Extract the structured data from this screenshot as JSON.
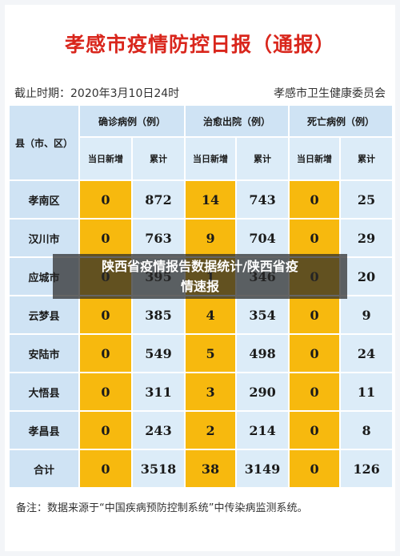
{
  "title": "孝感市疫情防控日报（通报）",
  "cutoff": "截止时期：2020年3月10日24时",
  "issuer": "孝感市卫生健康委员会",
  "headers": {
    "county": "县（市、区）",
    "confirmed": "确诊病例（例）",
    "recovered": "治愈出院（例）",
    "deaths": "死亡病例（例）",
    "new": "当日新增",
    "total": "累计"
  },
  "rows": [
    {
      "county": "孝南区",
      "c_new": "0",
      "c_total": "872",
      "r_new": "14",
      "r_total": "743",
      "d_new": "0",
      "d_total": "25"
    },
    {
      "county": "汉川市",
      "c_new": "0",
      "c_total": "763",
      "r_new": "9",
      "r_total": "704",
      "d_new": "0",
      "d_total": "29"
    },
    {
      "county": "应城市",
      "c_new": "0",
      "c_total": "395",
      "r_new": "1",
      "r_total": "346",
      "d_new": "0",
      "d_total": "20"
    },
    {
      "county": "云梦县",
      "c_new": "0",
      "c_total": "385",
      "r_new": "4",
      "r_total": "354",
      "d_new": "0",
      "d_total": "9"
    },
    {
      "county": "安陆市",
      "c_new": "0",
      "c_total": "549",
      "r_new": "5",
      "r_total": "498",
      "d_new": "0",
      "d_total": "24"
    },
    {
      "county": "大悟县",
      "c_new": "0",
      "c_total": "311",
      "r_new": "3",
      "r_total": "290",
      "d_new": "0",
      "d_total": "11"
    },
    {
      "county": "孝昌县",
      "c_new": "0",
      "c_total": "243",
      "r_new": "2",
      "r_total": "214",
      "d_new": "0",
      "d_total": "8"
    },
    {
      "county": "合计",
      "c_new": "0",
      "c_total": "3518",
      "r_new": "38",
      "r_total": "3149",
      "d_new": "0",
      "d_total": "126"
    }
  ],
  "footer": "备注：数据来源于“中国疾病预防控制系统”中传染病监测系统。",
  "overlay": {
    "line1": "陕西省疫情报告数据统计/陕西省疫",
    "line2": "情速报"
  }
}
